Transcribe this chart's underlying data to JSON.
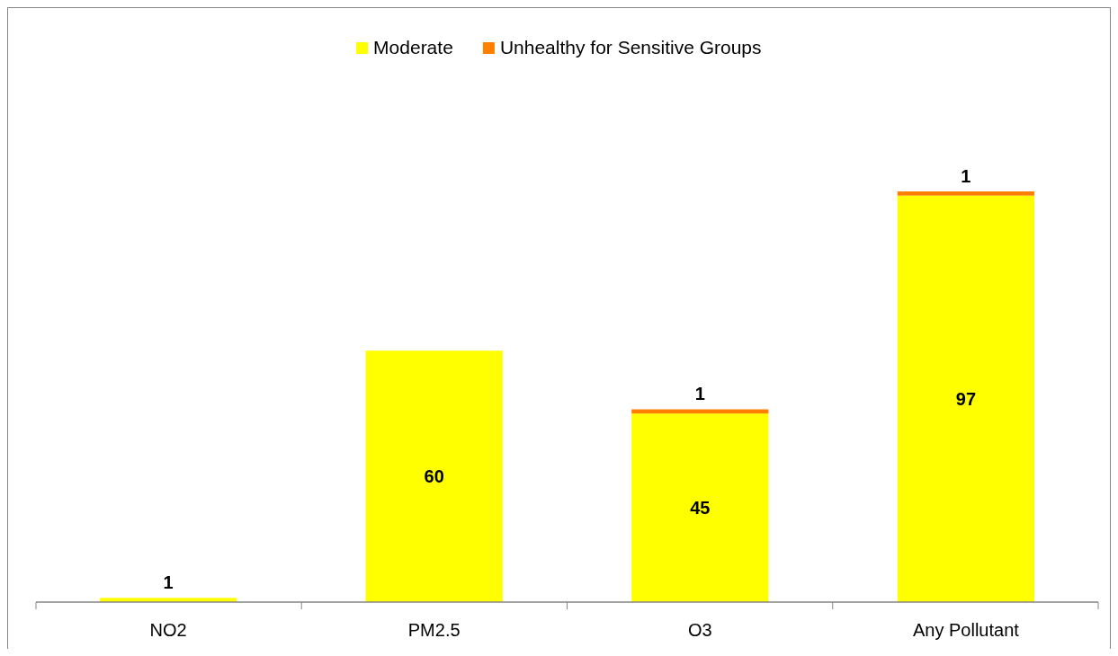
{
  "chart_data": {
    "type": "bar",
    "stacked": true,
    "categories": [
      "NO2",
      "PM2.5",
      "O3",
      "Any Pollutant"
    ],
    "series": [
      {
        "name": "Moderate",
        "color": "#ffff00",
        "values": [
          1,
          60,
          45,
          97
        ]
      },
      {
        "name": "Unhealthy for Sensitive Groups",
        "color": "#ff8000",
        "values": [
          null,
          null,
          1,
          1
        ]
      }
    ],
    "data_labels": true,
    "legend": "top"
  }
}
